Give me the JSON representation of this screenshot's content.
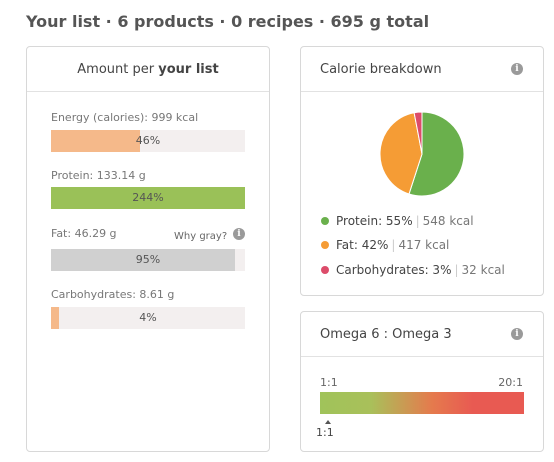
{
  "title": "Your list · 6 products · 0 recipes · 695 g total",
  "amount_panel": {
    "title_prefix": "Amount per",
    "title_bold": "your list",
    "why_gray": "Why gray?",
    "nutrients": [
      {
        "label": "Energy (calories): 999 kcal",
        "percent_label": "46%",
        "fill": 0.46,
        "color": "#f5b98a"
      },
      {
        "label": "Protein: 133.14 g",
        "percent_label": "244%",
        "fill": 1.0,
        "color": "#9ac158"
      },
      {
        "label": "Fat: 46.29 g",
        "percent_label": "95%",
        "fill": 0.95,
        "color": "#d0d0d0"
      },
      {
        "label": "Carbohydrates: 8.61 g",
        "percent_label": "4%",
        "fill": 0.04,
        "color": "#f5b98a"
      }
    ]
  },
  "calorie_panel": {
    "title": "Calorie breakdown",
    "slices": [
      {
        "name": "Protein: 55%",
        "kcal": "548 kcal",
        "value": 55,
        "color": "#6ab04c"
      },
      {
        "name": "Fat: 42%",
        "kcal": "417 kcal",
        "value": 42,
        "color": "#f59c35"
      },
      {
        "name": "Carbohydrates: 3%",
        "kcal": "32 kcal",
        "value": 3,
        "color": "#dc4c6a"
      }
    ]
  },
  "omega_panel": {
    "title": "Omega 6 : Omega 3",
    "scale_min": "1:1",
    "scale_max": "20:1",
    "marker_label": "1:1"
  },
  "icons": {
    "info": "info-icon",
    "marker": "triangle-marker-icon"
  }
}
